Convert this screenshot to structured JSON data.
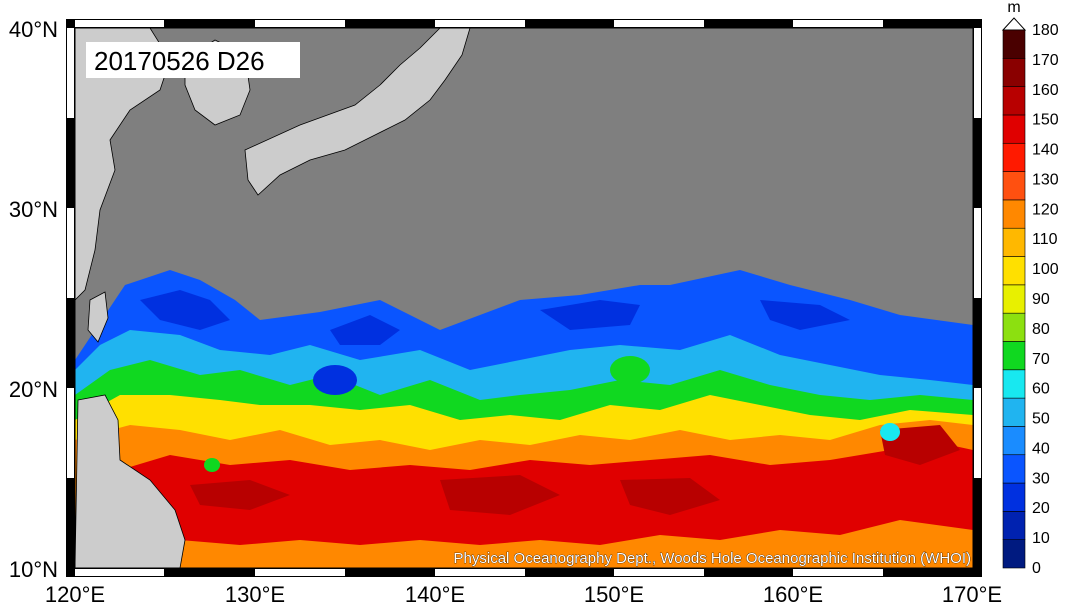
{
  "date_label": "20170526 D26",
  "credit": "Physical Oceanography Dept., Woods Hole Oceanographic Institution (WHOI)",
  "axes": {
    "x_ticks": [
      "120°E",
      "130°E",
      "140°E",
      "150°E",
      "160°E",
      "170°E"
    ],
    "y_ticks": [
      "40°N",
      "30°N",
      "20°N",
      "10°N"
    ]
  },
  "colorbar": {
    "unit": "m",
    "levels": [
      "0",
      "10",
      "20",
      "30",
      "40",
      "50",
      "60",
      "70",
      "80",
      "90",
      "100",
      "110",
      "120",
      "130",
      "140",
      "150",
      "160",
      "170",
      "180"
    ],
    "colors": [
      "#001a80",
      "#0022b0",
      "#0030e0",
      "#0a55ff",
      "#1a8cff",
      "#20b4f0",
      "#18e8f0",
      "#10d820",
      "#8ce010",
      "#e8f000",
      "#ffe000",
      "#ffb800",
      "#ff8800",
      "#ff5010",
      "#ff1a00",
      "#e00000",
      "#b80000",
      "#8a0000",
      "#4a0000"
    ]
  },
  "map_colors": {
    "land": "#cccccc",
    "no_data": "#7f7f7f"
  }
}
